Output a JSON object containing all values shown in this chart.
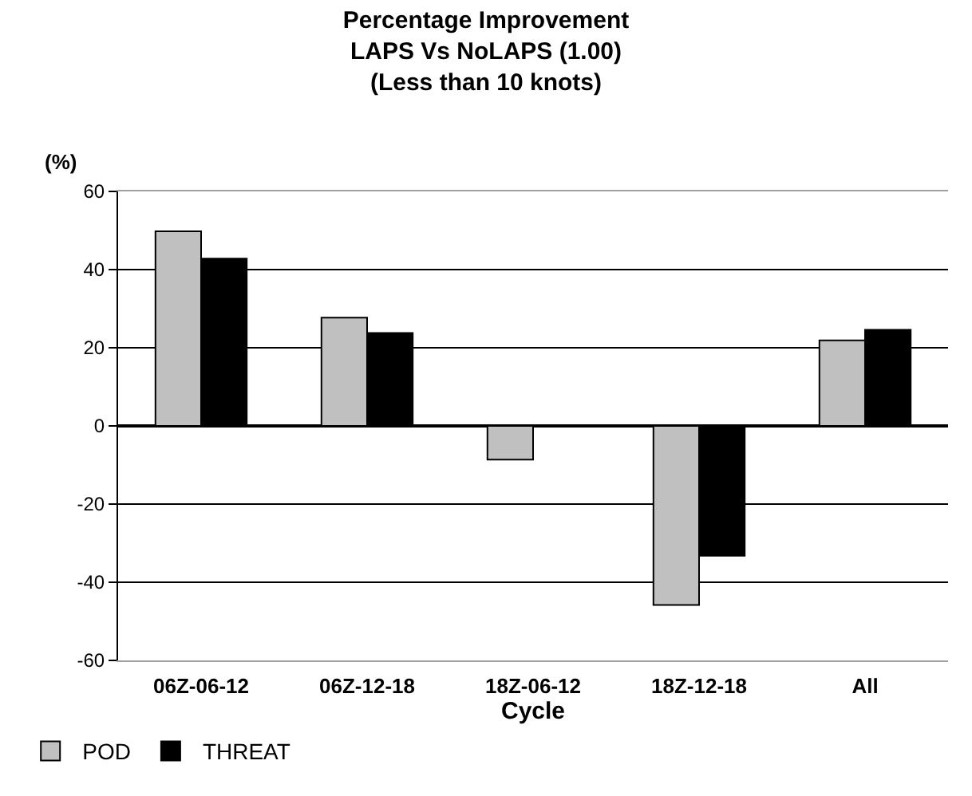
{
  "chart_data": {
    "type": "bar",
    "title": "Percentage Improvement\nLAPS Vs NoLAPS (1.00)\n(Less than 10 knots)",
    "xlabel": "Cycle",
    "ylabel": "(%)",
    "categories": [
      "06Z-06-12",
      "06Z-12-18",
      "18Z-06-12",
      "18Z-12-18",
      "All"
    ],
    "series": [
      {
        "name": "POD",
        "color": "#c0c0c0",
        "values": [
          49.8,
          27.7,
          -8.6,
          -45.8,
          21.9
        ]
      },
      {
        "name": "THREAT",
        "color": "#000000",
        "values": [
          42.8,
          23.8,
          0,
          -33.2,
          24.6
        ]
      }
    ],
    "ylim": [
      -60,
      60
    ],
    "yticks": [
      -60,
      -40,
      -20,
      0,
      20,
      40,
      60
    ],
    "grid": "y",
    "legend": "bottom left"
  }
}
